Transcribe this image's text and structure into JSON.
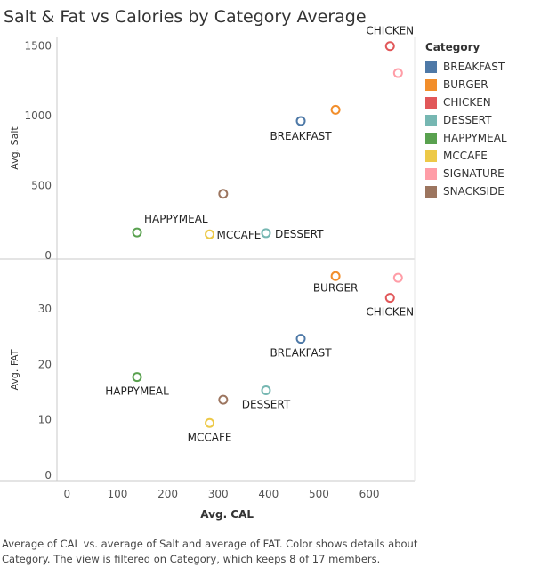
{
  "title": "Salt & Fat vs Calories by Category Average",
  "legend": {
    "title": "Category",
    "items": [
      {
        "label": "BREAKFAST",
        "color": "#4e79a7"
      },
      {
        "label": "BURGER",
        "color": "#f28e2b"
      },
      {
        "label": "CHICKEN",
        "color": "#e15759"
      },
      {
        "label": "DESSERT",
        "color": "#76b7b2"
      },
      {
        "label": "HAPPYMEAL",
        "color": "#59a14f"
      },
      {
        "label": "MCCAFE",
        "color": "#edc948"
      },
      {
        "label": "SIGNATURE",
        "color": "#ff9da7"
      },
      {
        "label": "SNACKSIDE",
        "color": "#9c755f"
      }
    ]
  },
  "footer": {
    "line1": "Average of CAL vs. average of Salt and average of FAT.  Color shows details about",
    "line2": "Category. The view is filtered on Category, which keeps 8 of 17 members."
  },
  "chart_data": {
    "type": "scatter",
    "xlabel": "Avg. CAL",
    "xlim": [
      -20,
      690
    ],
    "xticks": [
      0,
      100,
      200,
      300,
      400,
      500,
      600
    ],
    "panels": [
      {
        "ylabel": "Avg. Salt",
        "ylim": [
          -25,
          1560
        ],
        "yticks": [
          0,
          500,
          1000,
          1500
        ],
        "points": [
          {
            "category": "BREAKFAST",
            "x": 464,
            "y": 962,
            "label": "BREAKFAST"
          },
          {
            "category": "BURGER",
            "x": 533,
            "y": 1042,
            "label": ""
          },
          {
            "category": "CHICKEN",
            "x": 641,
            "y": 1498,
            "label": "CHICKEN"
          },
          {
            "category": "DESSERT",
            "x": 395,
            "y": 160,
            "label": "DESSERT"
          },
          {
            "category": "HAPPYMEAL",
            "x": 139,
            "y": 165,
            "label": "HAPPYMEAL"
          },
          {
            "category": "MCCAFE",
            "x": 283,
            "y": 152,
            "label": "MCCAFE"
          },
          {
            "category": "SIGNATURE",
            "x": 657,
            "y": 1305,
            "label": ""
          },
          {
            "category": "SNACKSIDE",
            "x": 310,
            "y": 441,
            "label": ""
          }
        ]
      },
      {
        "ylabel": "Avg. FAT",
        "ylim": [
          -1,
          39
        ],
        "yticks": [
          0,
          10,
          20,
          30
        ],
        "points": [
          {
            "category": "BREAKFAST",
            "x": 464,
            "y": 24.6,
            "label": "BREAKFAST"
          },
          {
            "category": "BURGER",
            "x": 533,
            "y": 35.9,
            "label": "BURGER"
          },
          {
            "category": "CHICKEN",
            "x": 641,
            "y": 32.0,
            "label": "CHICKEN"
          },
          {
            "category": "DESSERT",
            "x": 395,
            "y": 15.3,
            "label": "DESSERT"
          },
          {
            "category": "HAPPYMEAL",
            "x": 139,
            "y": 17.7,
            "label": "HAPPYMEAL"
          },
          {
            "category": "MCCAFE",
            "x": 283,
            "y": 9.4,
            "label": "MCCAFE"
          },
          {
            "category": "SIGNATURE",
            "x": 657,
            "y": 35.6,
            "label": ""
          },
          {
            "category": "SNACKSIDE",
            "x": 310,
            "y": 13.6,
            "label": ""
          }
        ]
      }
    ],
    "legend_position": "right",
    "grid": false
  }
}
